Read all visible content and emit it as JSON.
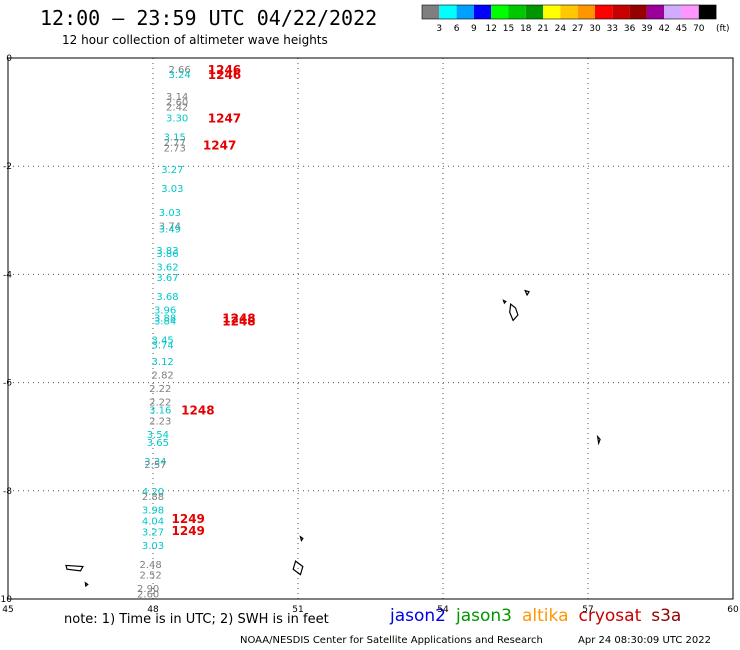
{
  "title": "12:00 – 23:59 UTC 04/22/2022",
  "subtitle": "12 hour collection of altimeter wave heights",
  "colorbar": {
    "colors": [
      "#7f7f7f",
      "#00ffff",
      "#00a0ff",
      "#0000ff",
      "#00ff00",
      "#00c800",
      "#009600",
      "#ffff00",
      "#ffc800",
      "#ff9600",
      "#ff0000",
      "#c80000",
      "#960000",
      "#9b009b",
      "#d2aaff",
      "#ff96ff",
      "#000000"
    ],
    "labels": [
      "3",
      "6",
      "9",
      "12",
      "15",
      "18",
      "21",
      "24",
      "27",
      "30",
      "33",
      "36",
      "39",
      "42",
      "45",
      "70"
    ],
    "unit": "(ft)"
  },
  "axes": {
    "x_ticks": [
      "45",
      "48",
      "51",
      "54",
      "57",
      "60"
    ],
    "y_ticks": [
      "0",
      "-2",
      "-4",
      "-6",
      "-8",
      "-10"
    ],
    "xlim": [
      45,
      60
    ],
    "ylim": [
      -10,
      0
    ]
  },
  "observations": [
    {
      "text": "2.66",
      "color": "#7f7f7f",
      "lon": 48.55,
      "lat": -0.2
    },
    {
      "text": "3.24",
      "color": "#00c8c8",
      "lon": 48.55,
      "lat": -0.3
    },
    {
      "text": "3.14",
      "color": "#7f7f7f",
      "lon": 48.5,
      "lat": -0.7
    },
    {
      "text": "2.60",
      "color": "#7f7f7f",
      "lon": 48.5,
      "lat": -0.8
    },
    {
      "text": "2.42",
      "color": "#7f7f7f",
      "lon": 48.5,
      "lat": -0.9
    },
    {
      "text": "3.30",
      "color": "#00c8c8",
      "lon": 48.5,
      "lat": -1.1
    },
    {
      "text": "3.15",
      "color": "#00c8c8",
      "lon": 48.45,
      "lat": -1.45
    },
    {
      "text": "2.77",
      "color": "#7f7f7f",
      "lon": 48.45,
      "lat": -1.55
    },
    {
      "text": "2.73",
      "color": "#7f7f7f",
      "lon": 48.45,
      "lat": -1.65
    },
    {
      "text": "3.27",
      "color": "#00c8c8",
      "lon": 48.4,
      "lat": -2.05
    },
    {
      "text": "3.03",
      "color": "#00c8c8",
      "lon": 48.4,
      "lat": -2.4
    },
    {
      "text": "3.03",
      "color": "#00c8c8",
      "lon": 48.35,
      "lat": -2.85
    },
    {
      "text": "3.74",
      "color": "#7f7f7f",
      "lon": 48.35,
      "lat": -3.1
    },
    {
      "text": "3.49",
      "color": "#00c8c8",
      "lon": 48.35,
      "lat": -3.15
    },
    {
      "text": "3.83",
      "color": "#00c8c8",
      "lon": 48.3,
      "lat": -3.55
    },
    {
      "text": "3.86",
      "color": "#00c8c8",
      "lon": 48.3,
      "lat": -3.6
    },
    {
      "text": "3.62",
      "color": "#00c8c8",
      "lon": 48.3,
      "lat": -3.85
    },
    {
      "text": "3.67",
      "color": "#00c8c8",
      "lon": 48.3,
      "lat": -4.05
    },
    {
      "text": "3.68",
      "color": "#00c8c8",
      "lon": 48.3,
      "lat": -4.4
    },
    {
      "text": "3.96",
      "color": "#00c8c8",
      "lon": 48.25,
      "lat": -4.65
    },
    {
      "text": "3.88",
      "color": "#00c8c8",
      "lon": 48.25,
      "lat": -4.8
    },
    {
      "text": "3.84",
      "color": "#00c8c8",
      "lon": 48.25,
      "lat": -4.85
    },
    {
      "text": "3.45",
      "color": "#00c8c8",
      "lon": 48.2,
      "lat": -5.2
    },
    {
      "text": "3.74",
      "color": "#00c8c8",
      "lon": 48.2,
      "lat": -5.3
    },
    {
      "text": "3.12",
      "color": "#00c8c8",
      "lon": 48.2,
      "lat": -5.6
    },
    {
      "text": "2.82",
      "color": "#7f7f7f",
      "lon": 48.2,
      "lat": -5.85
    },
    {
      "text": "2.22",
      "color": "#7f7f7f",
      "lon": 48.15,
      "lat": -6.1
    },
    {
      "text": "2.22",
      "color": "#7f7f7f",
      "lon": 48.15,
      "lat": -6.35
    },
    {
      "text": "3.16",
      "color": "#00c8c8",
      "lon": 48.15,
      "lat": -6.5
    },
    {
      "text": "2.23",
      "color": "#7f7f7f",
      "lon": 48.15,
      "lat": -6.7
    },
    {
      "text": "3.54",
      "color": "#00c8c8",
      "lon": 48.1,
      "lat": -6.95
    },
    {
      "text": "3.65",
      "color": "#00c8c8",
      "lon": 48.1,
      "lat": -7.1
    },
    {
      "text": "3.34",
      "color": "#00c8c8",
      "lon": 48.05,
      "lat": -7.45
    },
    {
      "text": "2.57",
      "color": "#7f7f7f",
      "lon": 48.05,
      "lat": -7.5
    },
    {
      "text": "4.20",
      "color": "#00c8c8",
      "lon": 48.0,
      "lat": -8.0
    },
    {
      "text": "2.88",
      "color": "#7f7f7f",
      "lon": 48.0,
      "lat": -8.1
    },
    {
      "text": "3.98",
      "color": "#00c8c8",
      "lon": 48.0,
      "lat": -8.35
    },
    {
      "text": "4.04",
      "color": "#00c8c8",
      "lon": 48.0,
      "lat": -8.55
    },
    {
      "text": "3.27",
      "color": "#00c8c8",
      "lon": 48.0,
      "lat": -8.75
    },
    {
      "text": "3.03",
      "color": "#00c8c8",
      "lon": 48.0,
      "lat": -9.0
    },
    {
      "text": "2.48",
      "color": "#7f7f7f",
      "lon": 47.95,
      "lat": -9.35
    },
    {
      "text": "2.52",
      "color": "#7f7f7f",
      "lon": 47.95,
      "lat": -9.55
    },
    {
      "text": "2.90",
      "color": "#7f7f7f",
      "lon": 47.9,
      "lat": -9.8
    },
    {
      "text": "2.60",
      "color": "#7f7f7f",
      "lon": 47.9,
      "lat": -9.9
    }
  ],
  "times": [
    {
      "text": "1246",
      "lon": 49.05,
      "lat": -0.2
    },
    {
      "text": "1246",
      "lon": 49.05,
      "lat": -0.3
    },
    {
      "text": "1247",
      "lon": 49.05,
      "lat": -1.1
    },
    {
      "text": "1247",
      "lon": 48.95,
      "lat": -1.6
    },
    {
      "text": "1248",
      "lon": 49.35,
      "lat": -4.8
    },
    {
      "text": "1248",
      "lon": 49.35,
      "lat": -4.85
    },
    {
      "text": "1248",
      "lon": 48.5,
      "lat": -6.5
    },
    {
      "text": "1249",
      "lon": 48.3,
      "lat": -8.5
    },
    {
      "text": "1249",
      "lon": 48.3,
      "lat": -8.72
    }
  ],
  "note": "note:  1) Time is in UTC; 2) SWH is in feet",
  "satellites": [
    {
      "name": "jason2",
      "color": "#0000e6"
    },
    {
      "name": "jason3",
      "color": "#009600"
    },
    {
      "name": "altika",
      "color": "#ff9600"
    },
    {
      "name": "cryosat",
      "color": "#c80000"
    },
    {
      "name": "s3a",
      "color": "#960000"
    }
  ],
  "credit": "NOAA/NESDIS Center for Satellite Applications and Research",
  "timestamp": "Apr 24 08:30:09 UTC 2022"
}
